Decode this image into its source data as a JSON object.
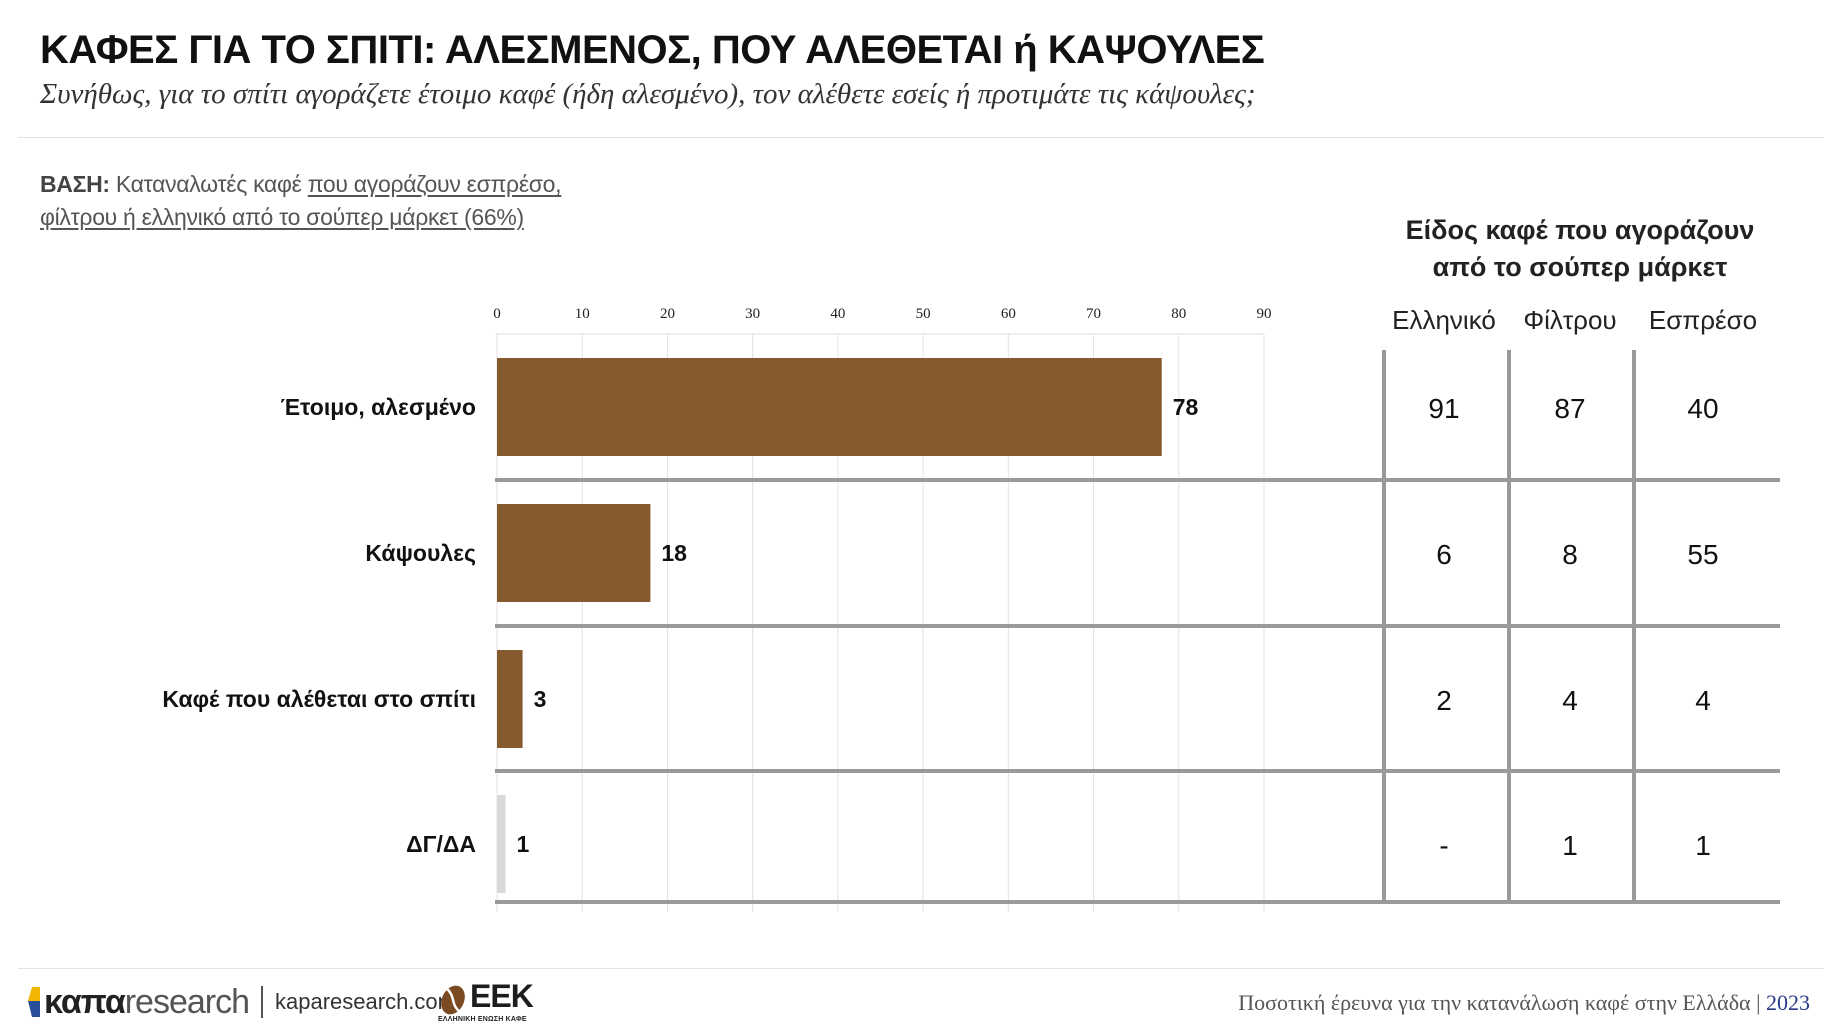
{
  "header": {
    "title": "ΚΑΦΕΣ ΓΙΑ ΤΟ ΣΠΙΤΙ: ΑΛΕΣΜΕΝΟΣ, ΠΟΥ ΑΛΕΘΕΤΑΙ ή ΚΑΨΟΥΛΕΣ",
    "subtitle": "Συνήθως, για το σπίτι αγοράζετε έτοιμο καφέ (ήδη αλεσμένο), τον αλέθετε εσείς ή προτιμάτε τις κάψουλες;"
  },
  "base": {
    "label": "ΒΑΣΗ:",
    "text_plain": "Καταναλωτές καφέ",
    "text_underlined_1": "που αγοράζουν εσπρέσο,",
    "text_underlined_2": "φίλτρου ή ελληνικό από το σούπερ μάρκετ (66%)"
  },
  "table": {
    "title_line1": "Είδος καφέ που αγοράζουν",
    "title_line2": "από το σούπερ μάρκετ",
    "columns": [
      "Ελληνικό",
      "Φίλτρου",
      "Εσπρέσο"
    ],
    "rows": [
      [
        "91",
        "87",
        "40"
      ],
      [
        "6",
        "8",
        "55"
      ],
      [
        "2",
        "4",
        "4"
      ],
      [
        "-",
        "1",
        "1"
      ]
    ]
  },
  "chart_data": {
    "type": "bar",
    "orientation": "horizontal",
    "categories": [
      "Έτοιμο, αλεσμένο",
      "Κάψουλες",
      "Καφέ που αλέθεται στο σπίτι",
      "ΔΓ/ΔΑ"
    ],
    "values": [
      78,
      18,
      3,
      1
    ],
    "value_labels": [
      "78",
      "18",
      "3",
      "1"
    ],
    "xlim": [
      0,
      90
    ],
    "xticks": [
      0,
      10,
      20,
      30,
      40,
      50,
      60,
      70,
      80,
      90
    ],
    "x_axis_position": "top",
    "grid": true,
    "colors": [
      "#845a2e",
      "#845a2e",
      "#845a2e",
      "#d9d9d9"
    ]
  },
  "footer": {
    "brand_bold": "καπα",
    "brand_light": "research",
    "url": "kaparesearch.com",
    "partner_logo": "ΕΕΚ",
    "partner_sub": "ΕΛΛΗΝΙΚΗ ΕΝΩΣΗ ΚΑΦΕ",
    "study": "Ποσοτική έρευνα για την κατανάλωση καφέ στην Ελλάδα |",
    "year": "2023"
  }
}
